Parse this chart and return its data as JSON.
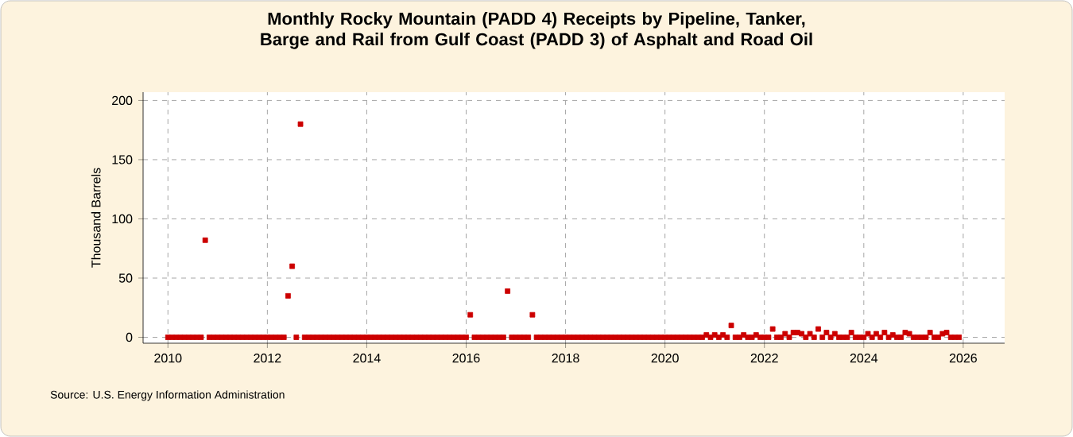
{
  "chart_data": {
    "type": "scatter",
    "title": "Monthly Rocky Mountain (PADD 4) Receipts by Pipeline, Tanker, Barge and Rail from Gulf Coast (PADD 3) of Asphalt and Road Oil",
    "ylabel": "Thousand Barrels",
    "annotations": [
      "Source: U.S. Energy Information Administration"
    ],
    "xlim": [
      "2009-07",
      "2026-11"
    ],
    "xticks": [
      "2010",
      "2012",
      "2014",
      "2016",
      "2018",
      "2020",
      "2022",
      "2024",
      "2026"
    ],
    "ylim": [
      -5,
      207
    ],
    "yticks": [
      0,
      50,
      100,
      150,
      200
    ],
    "grid": true,
    "marker": "square",
    "series": [
      {
        "color": "#cc0000",
        "x": [
          "2010-01",
          "2010-02",
          "2010-03",
          "2010-04",
          "2010-05",
          "2010-06",
          "2010-07",
          "2010-08",
          "2010-09",
          "2010-10",
          "2010-11",
          "2010-12",
          "2011-01",
          "2011-02",
          "2011-03",
          "2011-04",
          "2011-05",
          "2011-06",
          "2011-07",
          "2011-08",
          "2011-09",
          "2011-10",
          "2011-11",
          "2011-12",
          "2012-01",
          "2012-02",
          "2012-03",
          "2012-04",
          "2012-05",
          "2012-06",
          "2012-07",
          "2012-08",
          "2012-09",
          "2012-10",
          "2012-11",
          "2012-12",
          "2013-01",
          "2013-02",
          "2013-03",
          "2013-04",
          "2013-05",
          "2013-06",
          "2013-07",
          "2013-08",
          "2013-09",
          "2013-10",
          "2013-11",
          "2013-12",
          "2014-01",
          "2014-02",
          "2014-03",
          "2014-04",
          "2014-05",
          "2014-06",
          "2014-07",
          "2014-08",
          "2014-09",
          "2014-10",
          "2014-11",
          "2014-12",
          "2015-01",
          "2015-02",
          "2015-03",
          "2015-04",
          "2015-05",
          "2015-06",
          "2015-07",
          "2015-08",
          "2015-09",
          "2015-10",
          "2015-11",
          "2015-12",
          "2016-01",
          "2016-02",
          "2016-03",
          "2016-04",
          "2016-05",
          "2016-06",
          "2016-07",
          "2016-08",
          "2016-09",
          "2016-10",
          "2016-11",
          "2016-12",
          "2017-01",
          "2017-02",
          "2017-03",
          "2017-04",
          "2017-05",
          "2017-06",
          "2017-07",
          "2017-08",
          "2017-09",
          "2017-10",
          "2017-11",
          "2017-12",
          "2018-01",
          "2018-02",
          "2018-03",
          "2018-04",
          "2018-05",
          "2018-06",
          "2018-07",
          "2018-08",
          "2018-09",
          "2018-10",
          "2018-11",
          "2018-12",
          "2019-01",
          "2019-02",
          "2019-03",
          "2019-04",
          "2019-05",
          "2019-06",
          "2019-07",
          "2019-08",
          "2019-09",
          "2019-10",
          "2019-11",
          "2019-12",
          "2020-01",
          "2020-02",
          "2020-03",
          "2020-04",
          "2020-05",
          "2020-06",
          "2020-07",
          "2020-08",
          "2020-09",
          "2020-10",
          "2020-11",
          "2020-12",
          "2021-01",
          "2021-02",
          "2021-03",
          "2021-04",
          "2021-05",
          "2021-06",
          "2021-07",
          "2021-08",
          "2021-09",
          "2021-10",
          "2021-11",
          "2021-12",
          "2022-01",
          "2022-02",
          "2022-03",
          "2022-04",
          "2022-05",
          "2022-06",
          "2022-07",
          "2022-08",
          "2022-09",
          "2022-10",
          "2022-11",
          "2022-12",
          "2023-01",
          "2023-02",
          "2023-03",
          "2023-04",
          "2023-05",
          "2023-06",
          "2023-07",
          "2023-08",
          "2023-09",
          "2023-10",
          "2023-11",
          "2023-12",
          "2024-01",
          "2024-02",
          "2024-03",
          "2024-04",
          "2024-05",
          "2024-06",
          "2024-07",
          "2024-08",
          "2024-09",
          "2024-10",
          "2024-11",
          "2024-12",
          "2025-01",
          "2025-02",
          "2025-03",
          "2025-04",
          "2025-05",
          "2025-06",
          "2025-07",
          "2025-08",
          "2025-09",
          "2025-10",
          "2025-11",
          "2025-12"
        ],
        "values": [
          0,
          0,
          0,
          0,
          0,
          0,
          0,
          0,
          0,
          82,
          0,
          0,
          0,
          0,
          0,
          0,
          0,
          0,
          0,
          0,
          0,
          0,
          0,
          0,
          0,
          0,
          0,
          0,
          0,
          35,
          60,
          0,
          180,
          0,
          0,
          0,
          0,
          0,
          0,
          0,
          0,
          0,
          0,
          0,
          0,
          0,
          0,
          0,
          0,
          0,
          0,
          0,
          0,
          0,
          0,
          0,
          0,
          0,
          0,
          0,
          0,
          0,
          0,
          0,
          0,
          0,
          0,
          0,
          0,
          0,
          0,
          0,
          0,
          19,
          0,
          0,
          0,
          0,
          0,
          0,
          0,
          0,
          39,
          0,
          0,
          0,
          0,
          0,
          19,
          0,
          0,
          0,
          0,
          0,
          0,
          0,
          0,
          0,
          0,
          0,
          0,
          0,
          0,
          0,
          0,
          0,
          0,
          0,
          0,
          0,
          0,
          0,
          0,
          0,
          0,
          0,
          0,
          0,
          0,
          0,
          0,
          0,
          0,
          0,
          0,
          0,
          0,
          0,
          0,
          0,
          2,
          0,
          2,
          0,
          2,
          0,
          10,
          0,
          0,
          2,
          0,
          0,
          2,
          0,
          0,
          0,
          7,
          0,
          0,
          3,
          0,
          4,
          4,
          3,
          0,
          3,
          0,
          7,
          0,
          4,
          0,
          3,
          0,
          0,
          0,
          4,
          0,
          0,
          0,
          3,
          0,
          3,
          0,
          4,
          0,
          2,
          0,
          0,
          4,
          3,
          0,
          0,
          0,
          0,
          4,
          0,
          0,
          3,
          4,
          0,
          0,
          0
        ]
      }
    ]
  }
}
